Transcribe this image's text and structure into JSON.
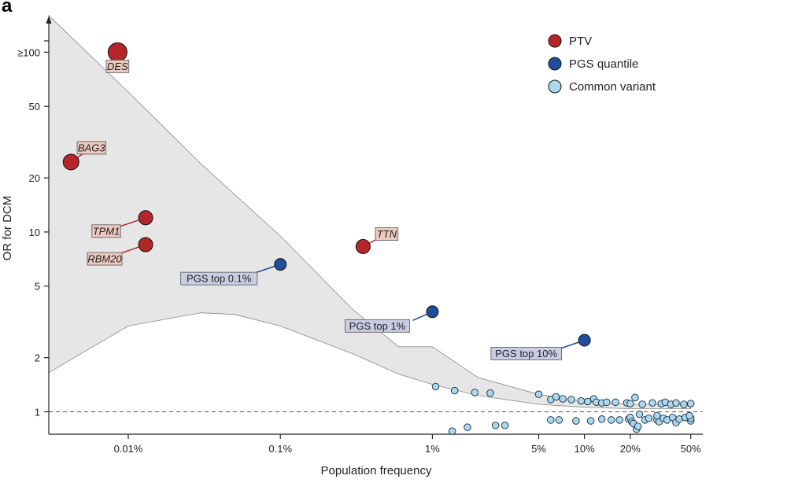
{
  "chart_data": {
    "type": "scatter",
    "panel_label": "a",
    "xlabel": "Population frequency",
    "ylabel": "OR for DCM",
    "x_scale": "log",
    "y_scale": "log",
    "xlim": [
      3e-05,
      0.6
    ],
    "ylim": [
      0.75,
      180
    ],
    "x_ticks": [
      {
        "value": 0.0001,
        "label": "0.01%"
      },
      {
        "value": 0.001,
        "label": "0.1%"
      },
      {
        "value": 0.01,
        "label": "1%"
      },
      {
        "value": 0.05,
        "label": "5%"
      },
      {
        "value": 0.1,
        "label": "10%"
      },
      {
        "value": 0.2,
        "label": "20%"
      },
      {
        "value": 0.5,
        "label": "50%"
      }
    ],
    "y_ticks": [
      {
        "value": 1,
        "label": "1"
      },
      {
        "value": 2,
        "label": "2"
      },
      {
        "value": 5,
        "label": "5"
      },
      {
        "value": 10,
        "label": "10"
      },
      {
        "value": 20,
        "label": "20"
      },
      {
        "value": 50,
        "label": "50"
      },
      {
        "value": 100,
        "label": "≥100"
      }
    ],
    "reference_line": {
      "y": 1,
      "style": "dashed"
    },
    "legend": {
      "position": "top-right",
      "entries": [
        {
          "name": "PTV",
          "color": "#b5262b"
        },
        {
          "name": "PGS quantile",
          "color": "#1f4f9c"
        },
        {
          "name": "Common variant",
          "color": "#a9d8ef"
        }
      ]
    },
    "band": {
      "description": "shaded region",
      "upper": [
        [
          3e-05,
          160
        ],
        [
          0.0001,
          60
        ],
        [
          0.0003,
          24
        ],
        [
          0.001,
          9.5
        ],
        [
          0.003,
          3.7
        ],
        [
          0.006,
          2.3
        ],
        [
          0.01,
          2.3
        ],
        [
          0.02,
          1.55
        ],
        [
          0.05,
          1.25
        ],
        [
          0.1,
          1.14
        ],
        [
          0.2,
          1.1
        ],
        [
          0.5,
          1.09
        ]
      ],
      "lower": [
        [
          3e-05,
          1.65
        ],
        [
          0.0001,
          3.0
        ],
        [
          0.0003,
          3.55
        ],
        [
          0.0005,
          3.48
        ],
        [
          0.001,
          3.0
        ],
        [
          0.003,
          2.1
        ],
        [
          0.006,
          1.62
        ],
        [
          0.01,
          1.42
        ],
        [
          0.02,
          1.23
        ],
        [
          0.05,
          1.1
        ],
        [
          0.1,
          1.06
        ],
        [
          0.2,
          1.04
        ],
        [
          0.5,
          1.04
        ]
      ]
    },
    "series": [
      {
        "name": "PTV",
        "color": "#b5262b",
        "points": [
          {
            "label": "DES",
            "x": 8.5e-05,
            "y": 100
          },
          {
            "label": "BAG3",
            "x": 4.2e-05,
            "y": 24.5
          },
          {
            "label": "TPM1",
            "x": 0.00013,
            "y": 12
          },
          {
            "label": "RBM20",
            "x": 0.00013,
            "y": 8.5
          },
          {
            "label": "TTN",
            "x": 0.0035,
            "y": 8.3
          }
        ]
      },
      {
        "name": "PGS quantile",
        "color": "#1f4f9c",
        "points": [
          {
            "label": "PGS top 0.1%",
            "x": 0.001,
            "y": 6.6
          },
          {
            "label": "PGS top 1%",
            "x": 0.01,
            "y": 3.6
          },
          {
            "label": "PGS top 10%",
            "x": 0.1,
            "y": 2.5
          }
        ]
      },
      {
        "name": "Common variant",
        "color": "#a9d8ef",
        "points": [
          {
            "x": 0.0105,
            "y": 1.38
          },
          {
            "x": 0.014,
            "y": 1.31
          },
          {
            "x": 0.019,
            "y": 1.28
          },
          {
            "x": 0.024,
            "y": 1.27
          },
          {
            "x": 0.05,
            "y": 1.25
          },
          {
            "x": 0.06,
            "y": 1.17
          },
          {
            "x": 0.065,
            "y": 1.21
          },
          {
            "x": 0.072,
            "y": 1.18
          },
          {
            "x": 0.082,
            "y": 1.17
          },
          {
            "x": 0.095,
            "y": 1.15
          },
          {
            "x": 0.105,
            "y": 1.14
          },
          {
            "x": 0.115,
            "y": 1.18
          },
          {
            "x": 0.12,
            "y": 1.13
          },
          {
            "x": 0.13,
            "y": 1.12
          },
          {
            "x": 0.14,
            "y": 1.13
          },
          {
            "x": 0.16,
            "y": 1.13
          },
          {
            "x": 0.19,
            "y": 1.12
          },
          {
            "x": 0.2,
            "y": 1.11
          },
          {
            "x": 0.215,
            "y": 1.2
          },
          {
            "x": 0.24,
            "y": 1.1
          },
          {
            "x": 0.28,
            "y": 1.12
          },
          {
            "x": 0.32,
            "y": 1.11
          },
          {
            "x": 0.34,
            "y": 1.13
          },
          {
            "x": 0.37,
            "y": 1.1
          },
          {
            "x": 0.4,
            "y": 1.12
          },
          {
            "x": 0.45,
            "y": 1.1
          },
          {
            "x": 0.5,
            "y": 1.11
          },
          {
            "x": 0.0135,
            "y": 0.78
          },
          {
            "x": 0.017,
            "y": 0.82
          },
          {
            "x": 0.026,
            "y": 0.84
          },
          {
            "x": 0.03,
            "y": 0.84
          },
          {
            "x": 0.06,
            "y": 0.9
          },
          {
            "x": 0.068,
            "y": 0.9
          },
          {
            "x": 0.088,
            "y": 0.89
          },
          {
            "x": 0.11,
            "y": 0.89
          },
          {
            "x": 0.13,
            "y": 0.91
          },
          {
            "x": 0.15,
            "y": 0.9
          },
          {
            "x": 0.17,
            "y": 0.9
          },
          {
            "x": 0.195,
            "y": 0.91
          },
          {
            "x": 0.2,
            "y": 0.93
          },
          {
            "x": 0.205,
            "y": 0.88
          },
          {
            "x": 0.21,
            "y": 0.86
          },
          {
            "x": 0.22,
            "y": 0.8
          },
          {
            "x": 0.225,
            "y": 0.83
          },
          {
            "x": 0.25,
            "y": 0.9
          },
          {
            "x": 0.265,
            "y": 0.92
          },
          {
            "x": 0.3,
            "y": 0.9
          },
          {
            "x": 0.31,
            "y": 0.88
          },
          {
            "x": 0.33,
            "y": 0.92
          },
          {
            "x": 0.35,
            "y": 0.9
          },
          {
            "x": 0.38,
            "y": 0.93
          },
          {
            "x": 0.4,
            "y": 0.87
          },
          {
            "x": 0.42,
            "y": 0.91
          },
          {
            "x": 0.46,
            "y": 0.93
          },
          {
            "x": 0.5,
            "y": 0.89
          },
          {
            "x": 0.5,
            "y": 0.92
          },
          {
            "x": 0.49,
            "y": 0.95
          },
          {
            "x": 0.3,
            "y": 0.95
          },
          {
            "x": 0.23,
            "y": 0.97
          }
        ]
      }
    ]
  }
}
